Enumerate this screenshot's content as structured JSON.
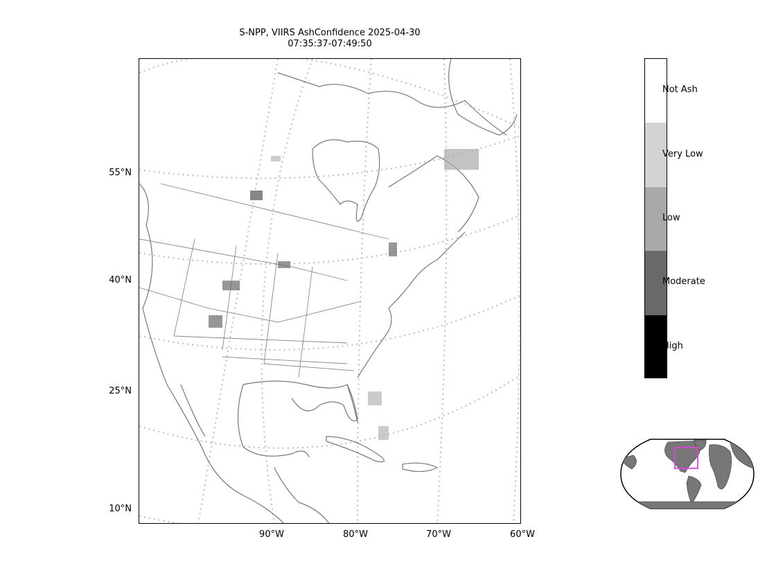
{
  "title": {
    "line1": "S-NPP, VIIRS AshConfidence 2025-04-30",
    "line2": "07:35:37-07:49:50"
  },
  "lat_labels": [
    "55°N",
    "40°N",
    "25°N",
    "10°N"
  ],
  "lon_labels": [
    "90°W",
    "80°W",
    "70°W",
    "60°W"
  ],
  "colorbar": {
    "categories": [
      {
        "label": "Not Ash",
        "color": "#ffffff"
      },
      {
        "label": "Very Low",
        "color": "#d3d3d3"
      },
      {
        "label": "Low",
        "color": "#a9a9a9"
      },
      {
        "label": "Moderate",
        "color": "#696969"
      },
      {
        "label": "High",
        "color": "#000000"
      }
    ]
  },
  "colors": {
    "coastline": "#777777",
    "gridline": "#bbbbbb",
    "land_globe": "#777777",
    "region_box": "#e040e0"
  }
}
